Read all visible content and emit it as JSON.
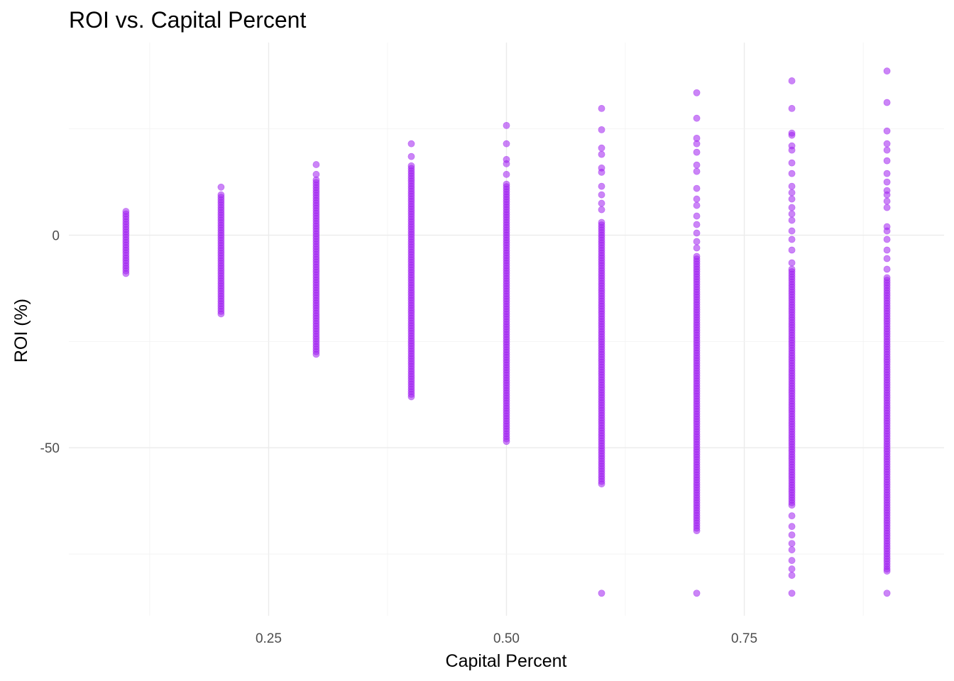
{
  "chart_data": {
    "type": "scatter",
    "title": "ROI vs. Capital Percent",
    "xlabel": "Capital Percent",
    "ylabel": "ROI (%)",
    "xlim": [
      0.04,
      0.96
    ],
    "ylim": [
      -89.5,
      45.3
    ],
    "x_ticks": [
      0.25,
      0.5,
      0.75
    ],
    "x_tick_labels": [
      "0.25",
      "0.50",
      "0.75"
    ],
    "y_ticks": [
      0,
      -50
    ],
    "y_tick_labels": [
      "0",
      "-50"
    ],
    "grid": true,
    "point_color": "#a020f0",
    "point_alpha": 0.55,
    "series": [
      {
        "x": 0.1,
        "dense_range": [
          -9.0,
          5.6
        ],
        "outliers": []
      },
      {
        "x": 0.2,
        "dense_range": [
          -18.5,
          9.5
        ],
        "outliers": [
          11.3
        ]
      },
      {
        "x": 0.3,
        "dense_range": [
          -28.0,
          13.0
        ],
        "outliers": [
          14.3,
          16.6
        ]
      },
      {
        "x": 0.4,
        "dense_range": [
          -38.0,
          16.3
        ],
        "outliers": [
          18.5,
          21.5
        ]
      },
      {
        "x": 0.5,
        "dense_range": [
          -48.5,
          12.0
        ],
        "outliers": [
          14.3,
          16.8,
          17.8,
          21.5,
          25.8
        ]
      },
      {
        "x": 0.6,
        "dense_range": [
          -58.5,
          3.0
        ],
        "outliers": [
          -84.2,
          6.0,
          7.5,
          9.5,
          11.5,
          14.8,
          15.8,
          19.0,
          20.5,
          24.8,
          29.8
        ]
      },
      {
        "x": 0.7,
        "dense_range": [
          -69.5,
          -5.0
        ],
        "outliers": [
          -84.2,
          -3.0,
          -1.5,
          0.5,
          2.5,
          4.5,
          7.0,
          8.5,
          11.0,
          15.0,
          16.5,
          19.5,
          21.5,
          22.8,
          27.5,
          33.5
        ]
      },
      {
        "x": 0.8,
        "dense_range": [
          -63.5,
          -8.0
        ],
        "outliers": [
          -84.2,
          -80.0,
          -78.5,
          -76.5,
          -74.0,
          -72.5,
          -70.5,
          -68.5,
          -66.0,
          -6.5,
          -3.5,
          -1.0,
          1.0,
          3.5,
          5.0,
          6.5,
          8.5,
          10.0,
          11.5,
          14.5,
          17.0,
          20.0,
          21.0,
          23.5,
          24.0,
          29.8,
          36.3
        ]
      },
      {
        "x": 0.9,
        "dense_range": [
          -78.5,
          -10.0
        ],
        "outliers": [
          -84.2,
          -79.0,
          -8.0,
          -5.5,
          -3.5,
          -1.0,
          1.0,
          2.0,
          6.5,
          8.0,
          9.5,
          10.5,
          12.5,
          14.5,
          17.5,
          20.0,
          21.5,
          24.5,
          31.2,
          38.6
        ]
      }
    ]
  }
}
